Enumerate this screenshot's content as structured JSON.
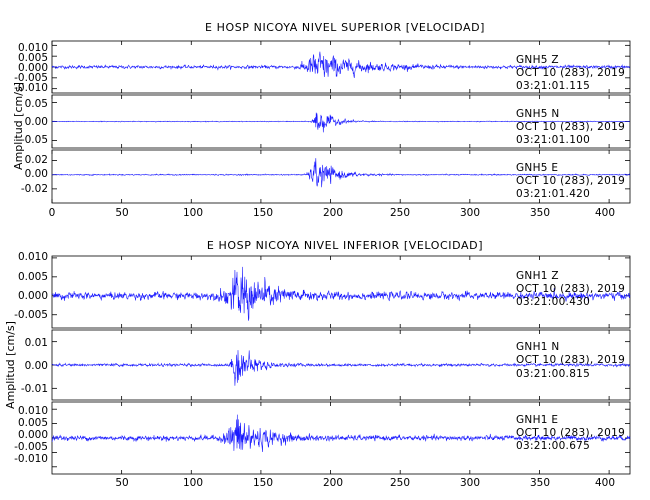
{
  "chart_data": [
    {
      "type": "line",
      "title": "E HOSP NICOYA NIVEL SUPERIOR [VELOCIDAD]",
      "ylabel": "Amplitud [cm/s]",
      "xlabel": "",
      "xlim": [
        0,
        415
      ],
      "xticks": [
        0,
        50,
        100,
        150,
        200,
        250,
        300,
        350,
        400
      ],
      "grid": false,
      "channels": [
        {
          "name": "GNH5  Z",
          "date": "OCT 10 (283), 2019",
          "time": "03:21:01.115",
          "ylim": [
            -0.012,
            0.012
          ],
          "yticks": [
            -0.01,
            -0.005,
            0.0,
            0.005,
            0.01
          ],
          "ytick_labels": [
            "-0.010",
            "-0.005",
            "0.000",
            "0.005",
            "0.010"
          ],
          "noise_amplitude": 0.0009,
          "event_start": 172,
          "event_peak_time": 190,
          "peak_amplitude": 0.009,
          "decay_seconds": 25
        },
        {
          "name": "GNH5  N",
          "date": "OCT 10 (283), 2019",
          "time": "03:21:01.100",
          "ylim": [
            -0.07,
            0.07
          ],
          "yticks": [
            -0.05,
            0.0,
            0.05
          ],
          "ytick_labels": [
            "-0.05",
            "0.00",
            "0.05"
          ],
          "noise_amplitude": 0.0012,
          "event_start": 185,
          "event_peak_time": 190,
          "peak_amplitude": 0.055,
          "decay_seconds": 9
        },
        {
          "name": "GNH5  E",
          "date": "OCT 10 (283), 2019",
          "time": "03:21:01.420",
          "ylim": [
            -0.04,
            0.035
          ],
          "yticks": [
            -0.02,
            0.0,
            0.02
          ],
          "ytick_labels": [
            "-0.02",
            "0.00",
            "0.02"
          ],
          "noise_amplitude": 0.001,
          "event_start": 180,
          "event_peak_time": 190,
          "peak_amplitude": 0.03,
          "decay_seconds": 12
        }
      ]
    },
    {
      "type": "line",
      "title": "E HOSP NICOYA NIVEL INFERIOR [VELOCIDAD]",
      "ylabel": "Amplitud [cm/s]",
      "xlabel": "",
      "xlim": [
        0,
        415
      ],
      "xticks": [
        50,
        100,
        150,
        200,
        250,
        300,
        350,
        400
      ],
      "grid": false,
      "channels": [
        {
          "name": "GNH1  Z",
          "date": "OCT 10 (283), 2019",
          "time": "03:21:00.430",
          "ylim": [
            -0.0085,
            0.0105
          ],
          "yticks": [
            -0.005,
            0.0,
            0.005,
            0.01
          ],
          "ytick_labels": [
            "-0.005",
            "0.000",
            "0.005",
            "0.010"
          ],
          "noise_amplitude": 0.0012,
          "event_start": 115,
          "event_peak_time": 135,
          "peak_amplitude": 0.009,
          "decay_seconds": 18
        },
        {
          "name": "GNH1  N",
          "date": "OCT 10 (283), 2019",
          "time": "03:21:00.815",
          "ylim": [
            -0.015,
            0.015
          ],
          "yticks": [
            -0.01,
            0.0,
            0.01
          ],
          "ytick_labels": [
            "-0.01",
            "0.00",
            "0.01"
          ],
          "noise_amplitude": 0.0007,
          "event_start": 125,
          "event_peak_time": 133,
          "peak_amplitude": 0.012,
          "decay_seconds": 10
        },
        {
          "name": "GNH1  E",
          "date": "OCT 10 (283), 2019",
          "time": "03:21:00.675",
          "ylim": [
            -0.0125,
            0.0125
          ],
          "yticks": [
            -0.01,
            -0.005,
            0.0,
            0.005,
            0.01
          ],
          "ytick_labels": [
            "-0.010",
            "-0.005",
            "0.000",
            "0.005",
            "0.010"
          ],
          "noise_amplitude": 0.0011,
          "event_start": 118,
          "event_peak_time": 133,
          "peak_amplitude": 0.011,
          "decay_seconds": 15
        }
      ]
    }
  ]
}
